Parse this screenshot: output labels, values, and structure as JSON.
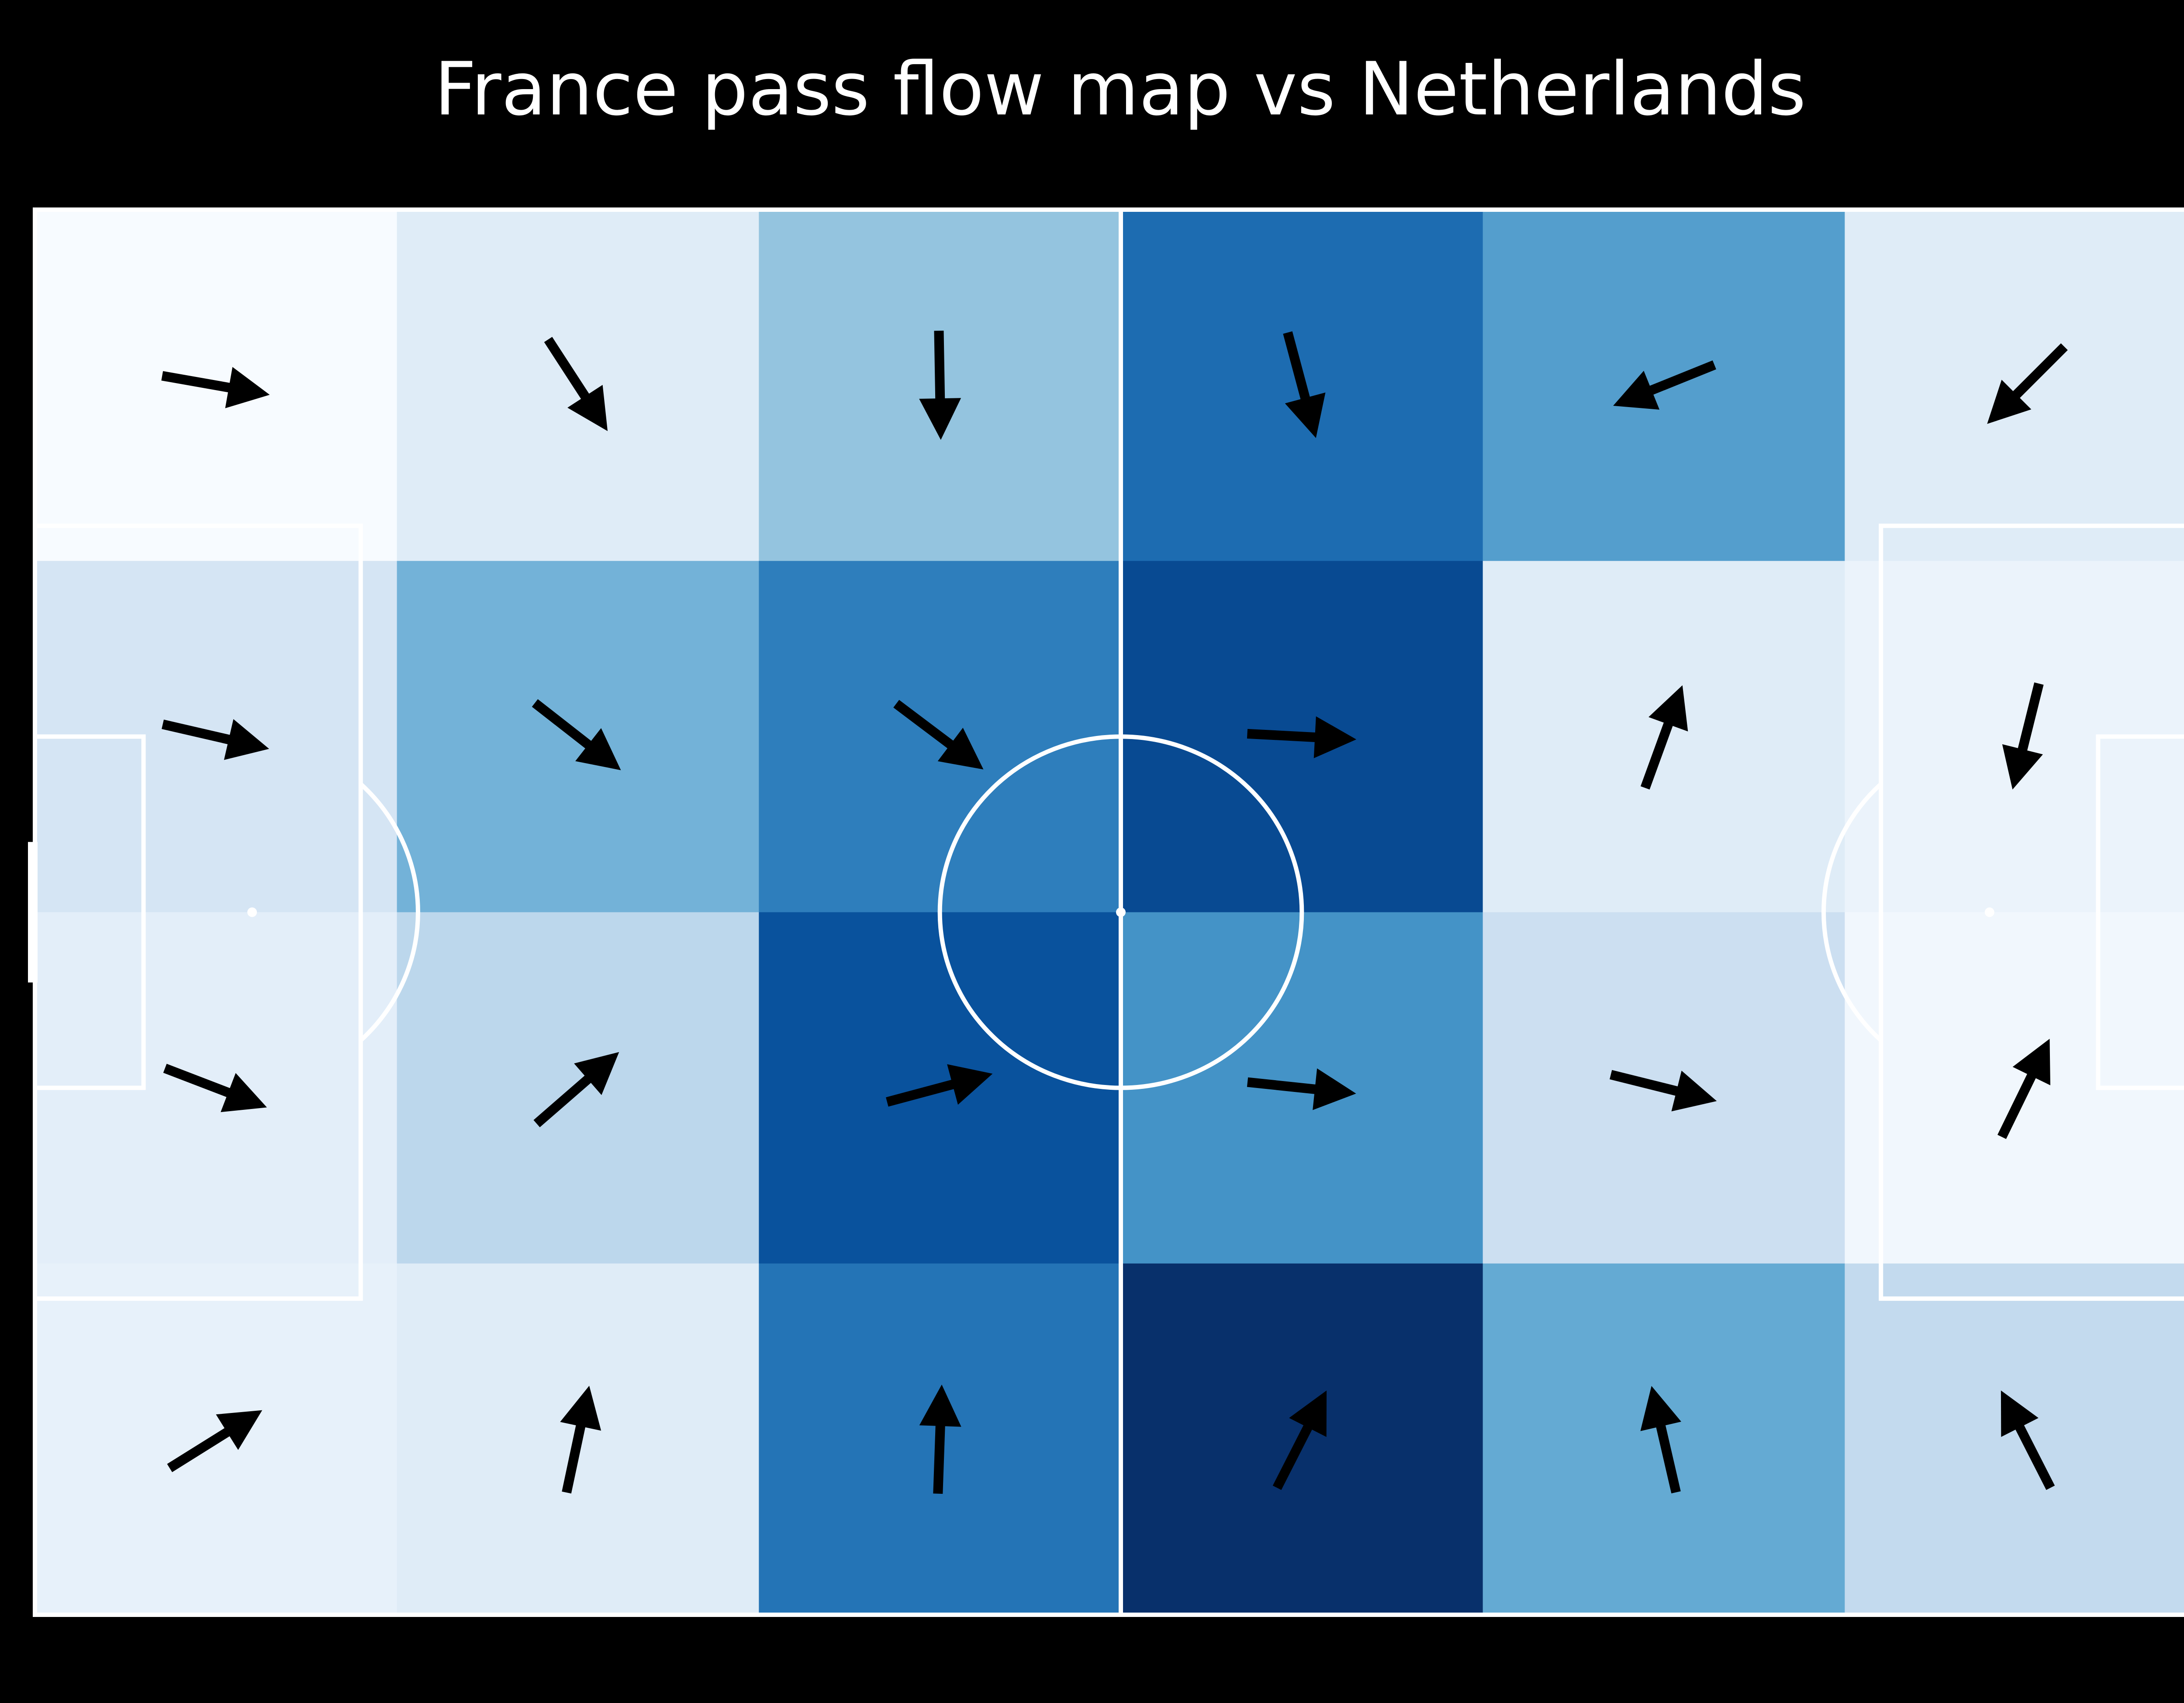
{
  "chart_data": {
    "type": "heatmap",
    "title": "France pass flow map vs Netherlands",
    "pitch": {
      "length": 120,
      "width": 80,
      "line_color": "#ffffff",
      "background": "#000000"
    },
    "grid": {
      "cols": 6,
      "rows": 4
    },
    "colormap": "Blues",
    "colormap_stops": [
      "#f7fbff",
      "#deebf7",
      "#c6dbef",
      "#9ecae1",
      "#6baed6",
      "#4292c6",
      "#2171b5",
      "#08519c",
      "#08306b"
    ],
    "arrow_color": "#000000",
    "cells": [
      {
        "col": 0,
        "row": 0,
        "intensity": 0.0,
        "angle": 10
      },
      {
        "col": 1,
        "row": 0,
        "intensity": 0.12,
        "angle": 57
      },
      {
        "col": 2,
        "row": 0,
        "intensity": 0.4,
        "angle": 89
      },
      {
        "col": 3,
        "row": 0,
        "intensity": 0.77,
        "angle": 75
      },
      {
        "col": 4,
        "row": 0,
        "intensity": 0.57,
        "angle": 158
      },
      {
        "col": 5,
        "row": 0,
        "intensity": 0.12,
        "angle": 135
      },
      {
        "col": 0,
        "row": 1,
        "intensity": 0.17,
        "angle": 13
      },
      {
        "col": 1,
        "row": 1,
        "intensity": 0.48,
        "angle": 38
      },
      {
        "col": 2,
        "row": 1,
        "intensity": 0.7,
        "angle": 37
      },
      {
        "col": 3,
        "row": 1,
        "intensity": 0.9,
        "angle": 3
      },
      {
        "col": 4,
        "row": 1,
        "intensity": 0.12,
        "angle": -70
      },
      {
        "col": 5,
        "row": 1,
        "intensity": 0.06,
        "angle": 104
      },
      {
        "col": 0,
        "row": 2,
        "intensity": 0.1,
        "angle": 21
      },
      {
        "col": 1,
        "row": 2,
        "intensity": 0.28,
        "angle": -41
      },
      {
        "col": 2,
        "row": 2,
        "intensity": 0.87,
        "angle": -15
      },
      {
        "col": 3,
        "row": 2,
        "intensity": 0.62,
        "angle": 6
      },
      {
        "col": 4,
        "row": 2,
        "intensity": 0.22,
        "angle": 14
      },
      {
        "col": 5,
        "row": 2,
        "intensity": 0.03,
        "angle": -64
      },
      {
        "col": 0,
        "row": 3,
        "intensity": 0.08,
        "angle": -32
      },
      {
        "col": 1,
        "row": 3,
        "intensity": 0.12,
        "angle": -78
      },
      {
        "col": 2,
        "row": 3,
        "intensity": 0.74,
        "angle": -88
      },
      {
        "col": 3,
        "row": 3,
        "intensity": 1.0,
        "angle": -63
      },
      {
        "col": 4,
        "row": 3,
        "intensity": 0.52,
        "angle": -103
      },
      {
        "col": 5,
        "row": 3,
        "intensity": 0.26,
        "angle": -117
      }
    ]
  }
}
